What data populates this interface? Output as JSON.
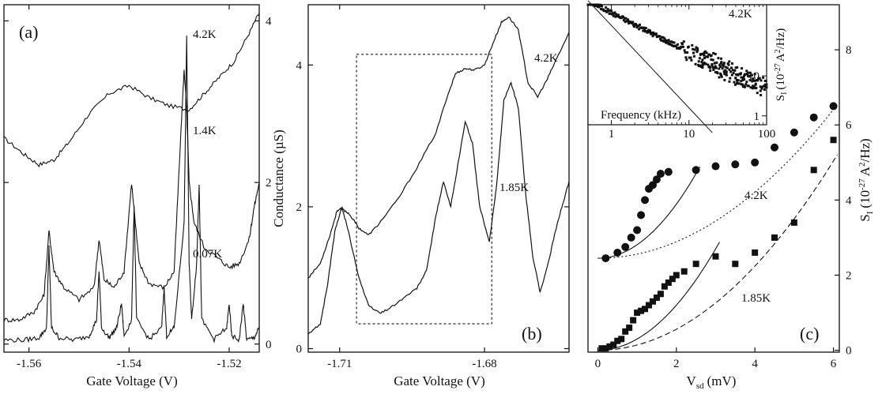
{
  "chart_data": [
    {
      "type": "line",
      "panel_label": "(a)",
      "xlabel": "Gate Voltage (V)",
      "xlim": [
        -1.565,
        -1.514
      ],
      "ylim": [
        -0.1,
        4.2
      ],
      "x_ticks": [
        -1.56,
        -1.54,
        -1.52
      ],
      "x_tick_labels": [
        "-1.56",
        "-1.54",
        "-1.52"
      ],
      "y_ticks": [
        0,
        2,
        4
      ],
      "y_tick_labels": [
        "0",
        "2",
        "4"
      ],
      "y_axis_side": "right",
      "series": [
        {
          "name": "4.2K",
          "x": [
            -1.565,
            -1.561,
            -1.558,
            -1.555,
            -1.552,
            -1.548,
            -1.544,
            -1.54,
            -1.536,
            -1.532,
            -1.528,
            -1.525,
            -1.522,
            -1.519,
            -1.516,
            -1.514
          ],
          "y": [
            2.55,
            2.35,
            2.22,
            2.28,
            2.5,
            2.85,
            3.1,
            3.2,
            3.05,
            2.95,
            2.9,
            3.1,
            3.3,
            3.5,
            3.85,
            4.1
          ]
        },
        {
          "name": "1.4K",
          "x": [
            -1.565,
            -1.562,
            -1.559,
            -1.557,
            -1.556,
            -1.555,
            -1.553,
            -1.55,
            -1.547,
            -1.546,
            -1.545,
            -1.543,
            -1.541,
            -1.5395,
            -1.538,
            -1.536,
            -1.533,
            -1.531,
            -1.5295,
            -1.529,
            -1.5285,
            -1.528,
            -1.527,
            -1.525,
            -1.522,
            -1.52,
            -1.518,
            -1.516,
            -1.515,
            -1.514
          ],
          "y": [
            0.3,
            0.3,
            0.4,
            0.6,
            1.4,
            0.9,
            0.7,
            0.55,
            0.7,
            1.3,
            0.8,
            0.7,
            0.9,
            2.0,
            1.0,
            0.75,
            0.7,
            0.9,
            2.8,
            3.4,
            2.9,
            2.0,
            1.5,
            1.2,
            1.05,
            0.95,
            1.0,
            1.3,
            1.7,
            2.0
          ]
        },
        {
          "name": "0.07K",
          "x": [
            -1.565,
            -1.561,
            -1.558,
            -1.5565,
            -1.556,
            -1.5555,
            -1.554,
            -1.551,
            -1.548,
            -1.5465,
            -1.546,
            -1.5455,
            -1.544,
            -1.5425,
            -1.5415,
            -1.541,
            -1.5395,
            -1.539,
            -1.5385,
            -1.536,
            -1.5335,
            -1.533,
            -1.5325,
            -1.531,
            -1.529,
            -1.5285,
            -1.528,
            -1.5275,
            -1.5265,
            -1.526,
            -1.5255,
            -1.523,
            -1.5205,
            -1.52,
            -1.5195,
            -1.518,
            -1.5172,
            -1.5165,
            -1.515,
            -1.514
          ],
          "y": [
            0.05,
            0.05,
            0.08,
            0.2,
            1.2,
            0.2,
            0.08,
            0.05,
            0.1,
            0.3,
            0.9,
            0.2,
            0.08,
            0.2,
            0.5,
            0.1,
            0.3,
            1.7,
            0.3,
            0.06,
            0.2,
            0.7,
            0.1,
            0.2,
            1.5,
            3.8,
            1.0,
            0.3,
            1.0,
            2.0,
            0.3,
            0.06,
            0.2,
            0.5,
            0.1,
            0.05,
            0.5,
            0.05,
            0.08,
            0.2
          ]
        }
      ]
    },
    {
      "type": "line",
      "panel_label": "(b)",
      "xlabel": "Gate Voltage (V)",
      "ylabel": "Conductance (µS)",
      "xlim": [
        -1.7165,
        -1.6625
      ],
      "ylim": [
        -0.05,
        4.85
      ],
      "x_ticks": [
        -1.71,
        -1.68
      ],
      "x_tick_labels": [
        "-1.71",
        "-1.68"
      ],
      "y_ticks": [
        0,
        2,
        4
      ],
      "y_tick_labels": [
        "0",
        "2",
        "4"
      ],
      "y_axis_side": "left",
      "series": [
        {
          "name": "4.2K",
          "x": [
            -1.7165,
            -1.714,
            -1.712,
            -1.7105,
            -1.7095,
            -1.708,
            -1.706,
            -1.704,
            -1.702,
            -1.698,
            -1.694,
            -1.69,
            -1.688,
            -1.686,
            -1.684,
            -1.682,
            -1.68,
            -1.678,
            -1.6765,
            -1.675,
            -1.673,
            -1.671,
            -1.669,
            -1.667,
            -1.665,
            -1.6625
          ],
          "y": [
            1.0,
            1.2,
            1.6,
            1.95,
            1.97,
            1.9,
            1.7,
            1.6,
            1.75,
            2.1,
            2.55,
            3.05,
            3.5,
            3.88,
            3.95,
            3.93,
            4.0,
            4.35,
            4.6,
            4.68,
            4.5,
            3.75,
            3.55,
            3.8,
            4.1,
            4.45
          ]
        },
        {
          "name": "1.85K",
          "x": [
            -1.7165,
            -1.714,
            -1.7125,
            -1.711,
            -1.7095,
            -1.708,
            -1.706,
            -1.704,
            -1.7015,
            -1.699,
            -1.696,
            -1.694,
            -1.692,
            -1.69,
            -1.6885,
            -1.687,
            -1.6855,
            -1.684,
            -1.6825,
            -1.681,
            -1.679,
            -1.6775,
            -1.676,
            -1.6745,
            -1.673,
            -1.6715,
            -1.67,
            -1.6685,
            -1.667,
            -1.6655,
            -1.664,
            -1.6625
          ],
          "y": [
            0.2,
            0.35,
            0.9,
            1.65,
            2.0,
            1.6,
            1.0,
            0.6,
            0.5,
            0.6,
            0.75,
            0.85,
            1.1,
            1.9,
            2.35,
            2.0,
            2.6,
            3.2,
            2.9,
            2.0,
            1.5,
            2.3,
            3.5,
            3.75,
            3.4,
            2.2,
            1.3,
            0.8,
            1.15,
            1.6,
            2.0,
            2.35
          ]
        }
      ],
      "box_x": [
        -1.7065,
        -1.6785
      ],
      "box_y": [
        0.35,
        4.15
      ]
    },
    {
      "type": "scatter",
      "panel_label": "(c)",
      "xlabel": "V",
      "xlabel_sub": "sd",
      "xlabel_unit": "(mV)",
      "ylabel": "S",
      "ylabel_sub": "I",
      "ylabel_rest": "(10",
      "ylabel_exp": "-27",
      "ylabel_unit": "A",
      "ylabel_exp2": "2",
      "ylabel_tail": "/Hz)",
      "xlim": [
        -0.25,
        6.15
      ],
      "ylim": [
        -0.05,
        9.2
      ],
      "x_ticks": [
        0,
        2,
        4,
        6
      ],
      "x_tick_labels": [
        "0",
        "2",
        "4",
        "6"
      ],
      "y_ticks": [
        0,
        2,
        4,
        6,
        8
      ],
      "y_tick_labels": [
        "0",
        "2",
        "4",
        "6",
        "8"
      ],
      "y_axis_side": "right",
      "series": [
        {
          "name": "4.2K",
          "marker": "circle",
          "x": [
            0.2,
            0.5,
            0.7,
            0.85,
            1.0,
            1.1,
            1.2,
            1.3,
            1.4,
            1.5,
            1.6,
            1.8,
            2.5,
            3,
            3.5,
            4,
            4.5,
            5,
            5.5,
            6
          ],
          "y": [
            2.45,
            2.6,
            2.75,
            3.0,
            3.2,
            3.6,
            4.0,
            4.3,
            4.4,
            4.55,
            4.7,
            4.75,
            4.8,
            4.9,
            4.95,
            5.0,
            5.4,
            5.8,
            6.2,
            6.5
          ]
        },
        {
          "name": "1.85K",
          "marker": "square",
          "x": [
            0.1,
            0.2,
            0.3,
            0.4,
            0.5,
            0.6,
            0.7,
            0.8,
            0.9,
            1.0,
            1.1,
            1.2,
            1.3,
            1.4,
            1.5,
            1.6,
            1.7,
            1.8,
            1.9,
            2.0,
            2.2,
            2.5,
            3.0,
            3.5,
            4.0,
            4.5,
            5.0,
            5.5,
            6.0
          ],
          "y": [
            0.05,
            0.05,
            0.1,
            0.15,
            0.25,
            0.3,
            0.5,
            0.6,
            0.8,
            1.0,
            1.05,
            1.1,
            1.2,
            1.3,
            1.4,
            1.5,
            1.7,
            1.8,
            1.9,
            2.0,
            2.1,
            2.3,
            2.5,
            2.3,
            2.6,
            3.0,
            3.4,
            4.8,
            5.6
          ]
        }
      ],
      "label_42k": "4.2K",
      "label_185k": "1.85K",
      "inset": {
        "xlabel": "Frequency (kHz)",
        "ylabel": "S",
        "ylabel_sub": "I",
        "ylabel_rest": "(10",
        "ylabel_exp": "-27",
        "ylabel_unit": "A",
        "ylabel_exp2": "2",
        "ylabel_tail": "/Hz)",
        "label": "4.2K",
        "x_log": true,
        "y_log": true,
        "xlim": [
          0.5,
          100
        ],
        "ylim": [
          0.6,
          600
        ],
        "x_ticks": [
          1,
          10,
          100
        ],
        "x_tick_labels": [
          "1",
          "10",
          "100"
        ],
        "y_ticks": [
          1,
          10
        ],
        "y_tick_labels": [
          "1",
          "10"
        ]
      }
    }
  ]
}
